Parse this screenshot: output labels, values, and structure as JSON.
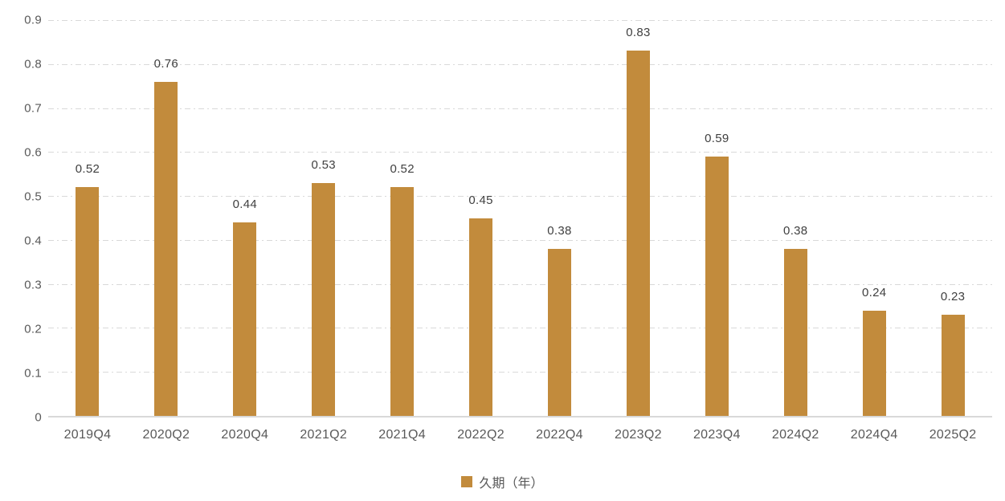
{
  "colors": {
    "bar": "#C28B3C",
    "gridline": "#D9D9D9",
    "axis_line": "#D9D9D9",
    "tick_label": "#595959",
    "data_label": "#404040",
    "background": "#FFFFFF"
  },
  "chart_data": {
    "type": "bar",
    "title": "",
    "categories": [
      "2019Q4",
      "2020Q2",
      "2020Q4",
      "2021Q2",
      "2021Q4",
      "2022Q2",
      "2022Q4",
      "2023Q2",
      "2023Q4",
      "2024Q2",
      "2024Q4",
      "2025Q2"
    ],
    "series": [
      {
        "name": "久期（年）",
        "values": [
          0.52,
          0.76,
          0.44,
          0.53,
          0.52,
          0.45,
          0.38,
          0.83,
          0.59,
          0.38,
          0.24,
          0.23
        ],
        "data_labels": [
          "0.52",
          "0.76",
          "0.44",
          "0.53",
          "0.52",
          "0.45",
          "0.38",
          "0.83",
          "0.59",
          "0.38",
          "0.24",
          "0.23"
        ]
      }
    ],
    "xlabel": "",
    "ylabel": "",
    "ylim": [
      0,
      0.9
    ],
    "ytick_interval": 0.1,
    "yticks": [
      "0.9",
      "0.8",
      "0.7",
      "0.6",
      "0.5",
      "0.4",
      "0.3",
      "0.2",
      "0.1",
      "0"
    ],
    "grid": "horizontal dashed gridlines, solid baseline",
    "legend_position": "bottom-center"
  },
  "legend": {
    "label": "久期（年）"
  }
}
